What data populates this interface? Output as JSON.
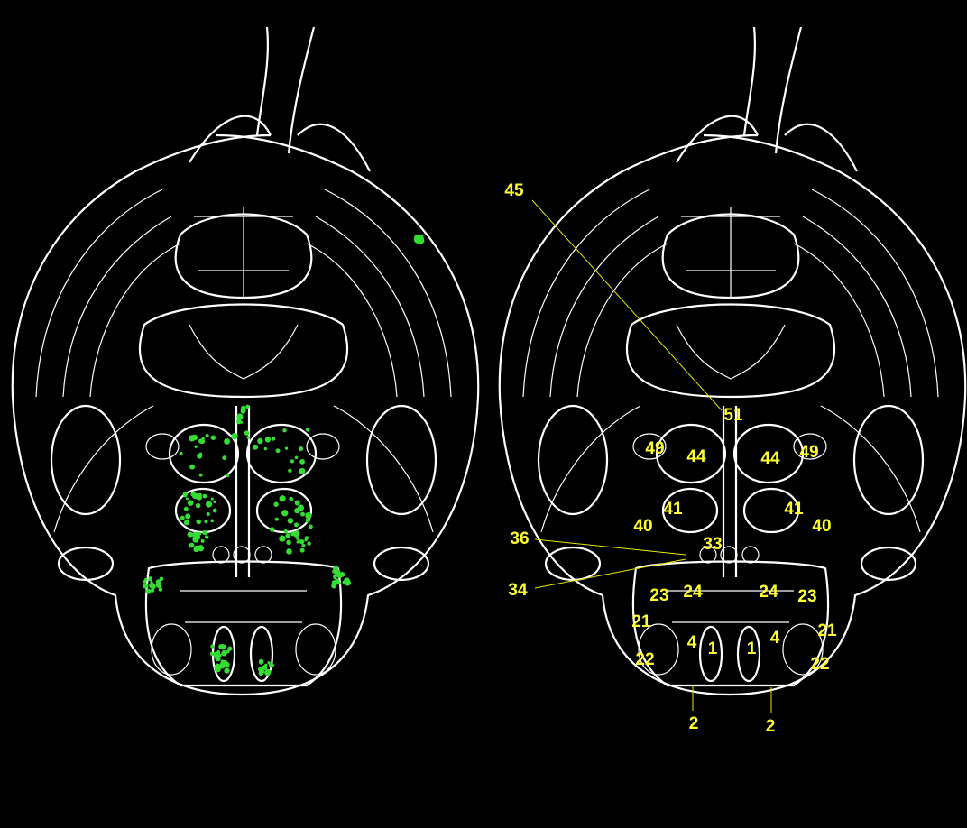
{
  "figure": {
    "panels": [
      "expression-map",
      "labeled-atlas"
    ],
    "colors": {
      "background": "#000000",
      "outline": "#ffffff",
      "signal": "#33dd33",
      "label": "#ffff33"
    }
  },
  "labels": [
    "45",
    "51",
    "49",
    "44",
    "44",
    "49",
    "41",
    "41",
    "40",
    "40",
    "36",
    "33",
    "34",
    "23",
    "24",
    "24",
    "23",
    "21",
    "21",
    "4",
    "1",
    "1",
    "4",
    "22",
    "22",
    "2",
    "2"
  ]
}
